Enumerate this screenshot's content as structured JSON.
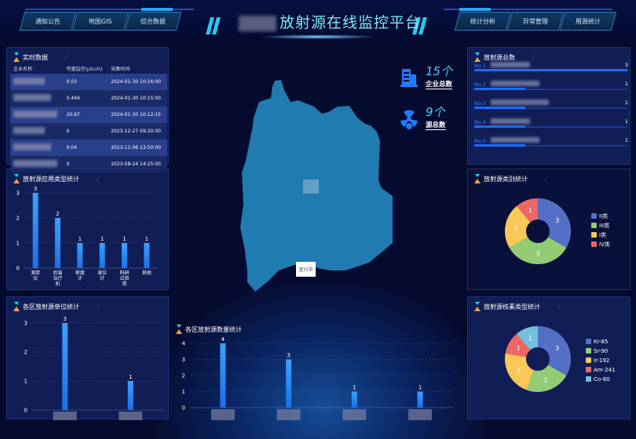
{
  "header": {
    "title": "放射源在线监控平台",
    "nav_left": [
      "通知公告",
      "地图GIS",
      "综合数据"
    ],
    "nav_right": [
      "统计分析",
      "异常管理",
      "用源统计"
    ]
  },
  "realtime": {
    "title": "实时数据",
    "columns": [
      "企业名称",
      "剂量监控(μSv/h)",
      "采集时间"
    ],
    "rows": [
      {
        "dose": "0.03",
        "time": "2024-01-30 10:16:00"
      },
      {
        "dose": "0.494",
        "time": "2024-01-30 10:15:00"
      },
      {
        "dose": "20.97",
        "time": "2024-01-30 10:12:15"
      },
      {
        "dose": "0",
        "time": "2023-12-27 09:20:00"
      },
      {
        "dose": "0.04",
        "time": "2023-11-06 13:50:00"
      },
      {
        "dose": "0",
        "time": "2023-08-24 14:25:00"
      }
    ]
  },
  "usage_chart": {
    "title": "放射源应用类型统计"
  },
  "district_units_chart": {
    "title": "各区放射源单位统计"
  },
  "district_sources_chart": {
    "title": "各区放射源数量统计"
  },
  "ranking": {
    "title": "放射源总数",
    "items": [
      {
        "no": "No.1",
        "value": "3"
      },
      {
        "no": "No.2",
        "value": "1"
      },
      {
        "no": "No.3",
        "value": "1"
      },
      {
        "no": "No.4",
        "value": "1"
      },
      {
        "no": "No.5",
        "value": "1"
      }
    ]
  },
  "stats": {
    "enterprise": {
      "value": "15个",
      "label": "企业总数",
      "icon": "building-icon"
    },
    "sources": {
      "value": "9个",
      "label": "源总数",
      "icon": "radiation-icon"
    }
  },
  "map": {
    "tooltip": "宜兴市",
    "fill": "#1f7bb0"
  },
  "chart_data": [
    {
      "id": "usage",
      "type": "bar",
      "categories": [
        "测厚仪",
        "后装治疗机",
        "密度计",
        "液位计",
        "科研试验用",
        "其他"
      ],
      "values": [
        3,
        2,
        1,
        1,
        1,
        1
      ],
      "ylim": [
        0,
        3
      ],
      "yticks": [
        0,
        1,
        2,
        3
      ]
    },
    {
      "id": "units",
      "type": "bar",
      "categories": [
        "",
        ""
      ],
      "values": [
        3,
        1
      ],
      "ylim": [
        0,
        3
      ],
      "yticks": [
        0,
        1,
        2,
        3
      ]
    },
    {
      "id": "sources",
      "type": "bar",
      "categories": [
        "",
        "",
        "",
        ""
      ],
      "values": [
        4,
        3,
        1,
        1
      ],
      "ylim": [
        0,
        4
      ],
      "yticks": [
        0,
        1,
        2,
        3,
        4
      ]
    },
    {
      "id": "category",
      "type": "pie",
      "title": "放射源类别统计",
      "legend": "right",
      "labels": [
        "II类",
        "III类",
        "I类",
        "IV类"
      ],
      "values": [
        3,
        3,
        2,
        1
      ],
      "colors": [
        "#5470c6",
        "#91cc75",
        "#fac858",
        "#ee6666"
      ]
    },
    {
      "id": "nuclide",
      "type": "pie",
      "title": "放射源核素类型统计",
      "legend": "right",
      "labels": [
        "Kr-85",
        "Sr-90",
        "Ir-192",
        "Am-241",
        "Co-60"
      ],
      "values": [
        3,
        2,
        2,
        1,
        1
      ],
      "colors": [
        "#5470c6",
        "#91cc75",
        "#fac858",
        "#ee6666",
        "#73c0de"
      ]
    }
  ]
}
